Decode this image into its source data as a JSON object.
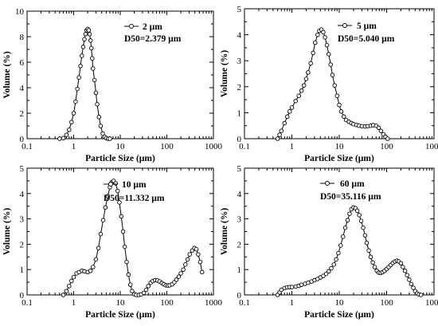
{
  "chart_data": [
    {
      "type": "scatter",
      "xlabel": "Particle Size (µm)",
      "ylabel": "Volume (%)",
      "xscale": "log",
      "xlim": [
        0.1,
        1000
      ],
      "ylim": [
        0,
        10
      ],
      "xticks": [
        "0.1",
        "1",
        "10",
        "100",
        "1000"
      ],
      "yticks": [
        "0",
        "2",
        "4",
        "6",
        "8",
        "10"
      ],
      "legend_label": "2 µm",
      "annotation": "D50=2.379 µm",
      "legend_position": "top-right",
      "series": [
        {
          "name": "2 µm",
          "x": [
            0.5,
            0.6,
            0.7,
            0.8,
            0.9,
            1.0,
            1.1,
            1.2,
            1.3,
            1.4,
            1.5,
            1.6,
            1.7,
            1.8,
            1.9,
            2.0,
            2.1,
            2.2,
            2.3,
            2.4,
            2.5,
            2.6,
            2.8,
            3.0,
            3.2,
            3.5,
            3.8,
            4.2,
            4.6,
            5.0,
            5.5,
            6.0
          ],
          "y": [
            0,
            0.05,
            0.3,
            0.7,
            1.3,
            2.0,
            2.9,
            3.9,
            4.8,
            5.7,
            6.5,
            7.2,
            7.8,
            8.2,
            8.5,
            8.6,
            8.5,
            8.2,
            7.7,
            7.1,
            6.3,
            5.5,
            4.6,
            3.6,
            2.7,
            1.7,
            1.0,
            0.4,
            0.15,
            0.05,
            0.0,
            0
          ]
        }
      ]
    },
    {
      "type": "scatter",
      "xlabel": "Particle Size (µm)",
      "ylabel": "Volume (%)",
      "xscale": "log",
      "xlim": [
        0.1,
        1000
      ],
      "ylim": [
        0,
        5
      ],
      "xticks": [
        "0.1",
        "1",
        "10",
        "100",
        "1000"
      ],
      "yticks": [
        "0",
        "1",
        "2",
        "3",
        "4",
        "5"
      ],
      "legend_label": "5 µm",
      "annotation": "D50=5.040 µm",
      "legend_position": "top-right",
      "series": [
        {
          "name": "5 µm",
          "x": [
            0.5,
            0.55,
            0.6,
            0.7,
            0.8,
            0.9,
            1.0,
            1.2,
            1.4,
            1.6,
            1.8,
            2.0,
            2.2,
            2.5,
            2.8,
            3.1,
            3.5,
            3.8,
            4.2,
            4.6,
            5.0,
            5.5,
            6.0,
            6.6,
            7.2,
            8.0,
            9.0,
            10,
            11,
            12.5,
            14,
            16,
            18,
            20,
            23,
            26,
            30,
            35,
            40,
            46,
            52,
            60,
            68,
            76,
            85,
            95,
            105
          ],
          "y": [
            0,
            0.15,
            0.3,
            0.6,
            0.85,
            1.05,
            1.2,
            1.45,
            1.65,
            1.85,
            2.05,
            2.3,
            2.55,
            2.9,
            3.3,
            3.7,
            4.0,
            4.15,
            4.2,
            4.1,
            3.9,
            3.6,
            3.25,
            2.85,
            2.45,
            2.05,
            1.65,
            1.3,
            1.05,
            0.85,
            0.72,
            0.65,
            0.6,
            0.56,
            0.53,
            0.5,
            0.48,
            0.47,
            0.48,
            0.5,
            0.52,
            0.5,
            0.42,
            0.3,
            0.17,
            0.07,
            0
          ]
        }
      ]
    },
    {
      "type": "scatter",
      "xlabel": "Particle Size (µm)",
      "ylabel": "Volume (%)",
      "xscale": "log",
      "xlim": [
        0.1,
        1000
      ],
      "ylim": [
        0,
        5
      ],
      "xticks": [
        "0.1",
        "1",
        "10",
        "100",
        "1000"
      ],
      "yticks": [
        "0",
        "1",
        "2",
        "3",
        "4",
        "5"
      ],
      "legend_label": "10 µm",
      "annotation": "D50=11.332 µm",
      "legend_position": "top-left",
      "series": [
        {
          "name": "10 µm",
          "x": [
            0.6,
            0.7,
            0.8,
            0.9,
            1.0,
            1.15,
            1.3,
            1.5,
            1.7,
            2.0,
            2.3,
            2.6,
            3.0,
            3.4,
            3.8,
            4.3,
            4.8,
            5.4,
            6.0,
            6.6,
            7.2,
            8.0,
            8.8,
            9.6,
            10.5,
            11.5,
            12.5,
            13.7,
            15,
            16.5,
            18,
            20,
            22,
            25,
            28,
            32,
            36,
            40,
            45,
            50,
            56,
            63,
            70,
            78,
            86,
            95,
            105,
            115,
            130,
            145,
            160,
            180,
            200,
            225,
            250,
            280,
            310,
            350,
            390,
            430,
            470,
            520,
            570
          ],
          "y": [
            0,
            0.15,
            0.35,
            0.55,
            0.7,
            0.85,
            0.9,
            0.95,
            0.93,
            0.9,
            0.95,
            1.1,
            1.4,
            1.85,
            2.4,
            2.95,
            3.45,
            3.9,
            4.25,
            4.45,
            4.5,
            4.4,
            4.1,
            3.65,
            3.1,
            2.5,
            1.9,
            1.3,
            0.8,
            0.4,
            0.15,
            0.03,
            0,
            0,
            0.02,
            0.08,
            0.2,
            0.35,
            0.48,
            0.55,
            0.58,
            0.57,
            0.53,
            0.47,
            0.42,
            0.38,
            0.37,
            0.38,
            0.42,
            0.5,
            0.6,
            0.72,
            0.85,
            1.0,
            1.2,
            1.4,
            1.6,
            1.75,
            1.85,
            1.8,
            1.6,
            1.3,
            0.9
          ]
        }
      ]
    },
    {
      "type": "scatter",
      "xlabel": "Particle Size (µm)",
      "ylabel": "Volume (%)",
      "xscale": "log",
      "xlim": [
        0.1,
        1000
      ],
      "ylim": [
        0,
        5
      ],
      "xticks": [
        "0.1",
        "1",
        "10",
        "100",
        "1000"
      ],
      "yticks": [
        "0",
        "1",
        "2",
        "3",
        "4",
        "5"
      ],
      "legend_label": "60 µm",
      "annotation": "D50=35.116 µm",
      "legend_position": "top-center",
      "series": [
        {
          "name": "60 µm",
          "x": [
            0.5,
            0.55,
            0.6,
            0.7,
            0.8,
            0.9,
            1.0,
            1.2,
            1.4,
            1.6,
            1.9,
            2.2,
            2.6,
            3.0,
            3.5,
            4.0,
            4.6,
            5.3,
            6.0,
            6.8,
            7.7,
            8.6,
            9.6,
            10.7,
            12,
            13.4,
            15,
            16.5,
            18,
            20,
            22,
            24,
            26.5,
            29,
            32,
            35,
            38,
            42,
            46,
            51,
            56,
            62,
            68,
            75,
            82,
            90,
            100,
            110,
            122,
            135,
            150,
            165,
            180,
            200,
            220,
            245,
            270,
            300,
            330,
            365,
            400,
            440,
            480,
            530
          ],
          "y": [
            0,
            0.1,
            0.2,
            0.27,
            0.3,
            0.31,
            0.31,
            0.33,
            0.36,
            0.4,
            0.44,
            0.48,
            0.53,
            0.58,
            0.63,
            0.69,
            0.75,
            0.83,
            0.93,
            1.05,
            1.2,
            1.4,
            1.65,
            1.95,
            2.3,
            2.65,
            2.95,
            3.2,
            3.38,
            3.45,
            3.42,
            3.32,
            3.15,
            2.92,
            2.65,
            2.35,
            2.05,
            1.75,
            1.5,
            1.28,
            1.1,
            0.95,
            0.88,
            0.87,
            0.9,
            0.95,
            1.02,
            1.1,
            1.18,
            1.26,
            1.32,
            1.35,
            1.32,
            1.25,
            1.1,
            0.95,
            0.78,
            0.6,
            0.43,
            0.28,
            0.15,
            0.06,
            0.02,
            0
          ]
        }
      ]
    }
  ]
}
